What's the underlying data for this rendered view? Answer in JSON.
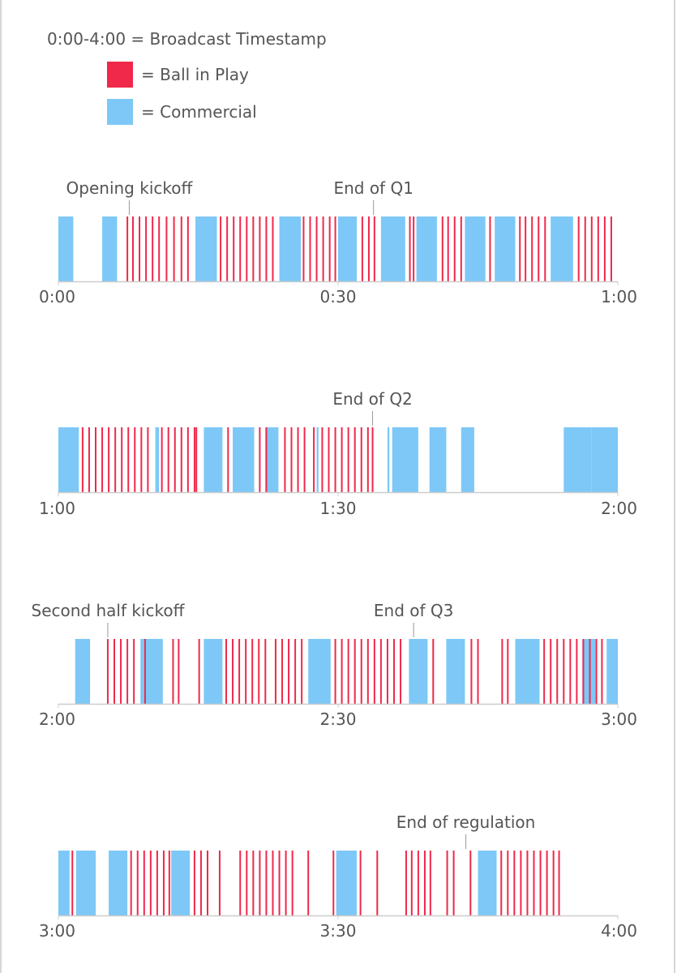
{
  "legend": {
    "title": "0:00-4:00 = Broadcast Timestamp",
    "items": [
      {
        "label": "= Ball in Play",
        "color": "#f0284a"
      },
      {
        "label": "= Commercial",
        "color": "#7dc8f7"
      }
    ]
  },
  "chart_data": {
    "type": "timeline",
    "unit": "minutes of broadcast",
    "colors": {
      "ball_in_play": "#f0284a",
      "commercial": "#7dc8f7",
      "axis": "#cccccc"
    },
    "rows": [
      {
        "start": 0,
        "end": 60,
        "tick_labels": [
          "0:00",
          "0:30",
          "1:00"
        ],
        "commercials": [
          [
            0,
            1.6
          ],
          [
            4.7,
            6.3
          ],
          [
            14.7,
            17.0
          ],
          [
            23.7,
            26.0
          ],
          [
            30.0,
            32.0
          ],
          [
            34.6,
            37.2
          ],
          [
            38.4,
            40.6
          ],
          [
            43.6,
            45.8
          ],
          [
            46.8,
            49.0
          ],
          [
            52.8,
            55.2
          ]
        ],
        "plays": [
          7.4,
          8.0,
          8.7,
          9.4,
          10.1,
          10.8,
          11.6,
          12.4,
          13.2,
          13.9,
          17.4,
          18.1,
          18.8,
          19.5,
          20.2,
          20.9,
          21.6,
          22.3,
          23.0,
          26.3,
          27.0,
          27.7,
          28.4,
          29.1,
          29.7,
          32.6,
          33.3,
          33.9,
          37.7,
          38.1,
          41.2,
          41.8,
          42.5,
          43.2,
          46.3,
          49.5,
          50.1,
          50.8,
          51.5,
          52.2,
          55.8,
          56.5,
          57.2,
          57.9,
          58.6,
          59.3
        ],
        "annotations": [
          {
            "t": 7.6,
            "label": "Opening kickoff"
          },
          {
            "t": 33.8,
            "label": "End of Q1"
          }
        ]
      },
      {
        "start": 60,
        "end": 120,
        "tick_labels": [
          "1:00",
          "1:30",
          "2:00"
        ],
        "commercials": [
          [
            60,
            62.2
          ],
          [
            70.4,
            70.8
          ],
          [
            75.6,
            77.6
          ],
          [
            78.7,
            81.0
          ],
          [
            82.2,
            83.6
          ],
          [
            87.7,
            87.9
          ],
          [
            95.3,
            95.5
          ],
          [
            95.8,
            98.6
          ],
          [
            99.8,
            101.6
          ],
          [
            103.2,
            104.6
          ],
          [
            114.2,
            117.2
          ],
          [
            117.2,
            120.0
          ]
        ],
        "plays": [
          62.6,
          63.3,
          64.0,
          64.7,
          65.4,
          66.1,
          66.8,
          67.5,
          68.2,
          68.9,
          69.6,
          71.1,
          71.8,
          72.5,
          73.2,
          73.9,
          74.6,
          74.8,
          78.2,
          81.6,
          82.3,
          84.3,
          85.0,
          85.7,
          86.4,
          87.4,
          88.3,
          89.0,
          89.7,
          90.4,
          91.1,
          91.8,
          92.5,
          93.2,
          93.7
        ]
      },
      {
        "start": 120,
        "end": 180,
        "tick_labels": [
          "2:00",
          "2:30",
          "3:00"
        ],
        "commercials": [
          [
            121.8,
            123.4
          ],
          [
            128.8,
            131.2
          ],
          [
            135.6,
            137.6
          ],
          [
            146.8,
            149.2
          ],
          [
            157.6,
            159.6
          ],
          [
            161.6,
            163.6
          ],
          [
            169.0,
            171.6
          ],
          [
            176.2,
            177.6
          ],
          [
            178.8,
            180.0
          ]
        ],
        "plays": [
          125.3,
          126.0,
          126.7,
          127.4,
          128.1,
          129.3,
          132.3,
          132.9,
          135.1,
          138.0,
          138.7,
          139.4,
          140.1,
          140.8,
          141.5,
          142.2,
          143.3,
          144.0,
          144.7,
          145.4,
          146.1,
          149.7,
          150.4,
          151.1,
          151.8,
          152.5,
          153.2,
          153.9,
          154.6,
          155.3,
          156.0,
          156.7,
          160.2,
          164.3,
          165.0,
          167.6,
          168.2,
          172.1,
          172.8,
          173.5,
          174.2,
          174.9,
          175.6,
          176.3,
          177.0,
          177.7,
          178.3
        ]
      },
      {
        "start": 180,
        "end": 240,
        "tick_labels": [
          "3:00",
          "3:30",
          "4:00"
        ],
        "commercials": [
          [
            180,
            181.2
          ],
          [
            181.9,
            184.0
          ],
          [
            185.4,
            187.4
          ],
          [
            192.1,
            194.1
          ],
          [
            209.8,
            212.0
          ],
          [
            225.0,
            227.0
          ]
        ],
        "plays": [
          181.5,
          187.8,
          188.5,
          189.2,
          189.9,
          190.6,
          191.3,
          191.9,
          194.6,
          195.3,
          196.0,
          197.3,
          199.5,
          200.2,
          200.9,
          201.6,
          202.3,
          203.0,
          203.7,
          204.4,
          205.1,
          206.8,
          209.5,
          212.4,
          214.2,
          217.3,
          217.9,
          218.6,
          219.3,
          219.9,
          221.7,
          222.4,
          224.2,
          227.5,
          228.2,
          228.9,
          229.6,
          230.3,
          231.0,
          231.7,
          232.4,
          233.1,
          233.7
        ],
        "annotations": [
          {
            "t": 223.7,
            "label": "End of regulation"
          }
        ]
      }
    ],
    "extra_annotations": [
      {
        "row": 1,
        "t": 93.7,
        "label": "End of Q2"
      },
      {
        "row": 2,
        "t": 125.3,
        "label": "Second half kickoff"
      },
      {
        "row": 2,
        "t": 158.1,
        "label": "End of Q3"
      }
    ]
  }
}
